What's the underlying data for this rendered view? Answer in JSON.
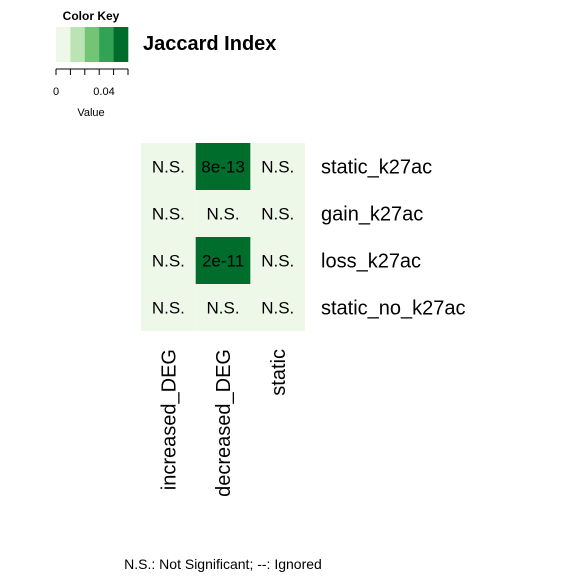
{
  "chart_data": {
    "type": "heatmap",
    "title": "Jaccard Index",
    "rows": [
      "static_k27ac",
      "gain_k27ac",
      "loss_k27ac",
      "static_no_k27ac"
    ],
    "columns": [
      "increased_DEG",
      "decreased_DEG",
      "static"
    ],
    "values": [
      [
        0.0,
        0.06,
        0.0
      ],
      [
        0.0,
        0.0,
        0.0
      ],
      [
        0.0,
        0.06,
        0.0
      ],
      [
        0.0,
        0.0,
        0.0
      ]
    ],
    "cell_labels": [
      [
        "N.S.",
        "8e-13",
        "N.S."
      ],
      [
        "N.S.",
        "N.S.",
        "N.S."
      ],
      [
        "N.S.",
        "2e-11",
        "N.S."
      ],
      [
        "N.S.",
        "N.S.",
        "N.S."
      ]
    ],
    "color_key": {
      "title": "Color Key",
      "xlabel": "Value",
      "tick_labels": [
        "0",
        "0.04"
      ],
      "tick_values": [
        0,
        0.04
      ],
      "range": [
        0,
        0.06
      ],
      "colors": [
        "#edf8e9",
        "#bae4b3",
        "#74c476",
        "#31a354",
        "#006d2c"
      ]
    },
    "footnote": "N.S.: Not Significant; --: Ignored"
  }
}
